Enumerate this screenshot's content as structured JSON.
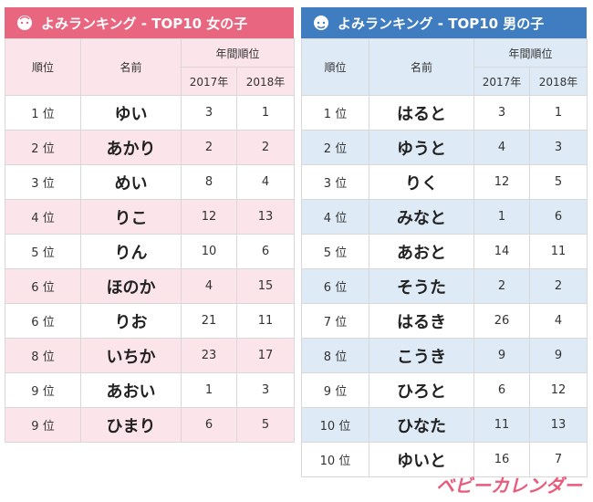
{
  "tables": [
    {
      "title": "よみランキング - TOP10 女の子",
      "headers": {
        "rank": "順位",
        "name": "名前",
        "yearly": "年間順位",
        "year1": "2017年",
        "year2": "2018年"
      },
      "rows": [
        [
          "1 位",
          "ゆい",
          3,
          1
        ],
        [
          "2 位",
          "あかり",
          2,
          2
        ],
        [
          "3 位",
          "めい",
          8,
          4
        ],
        [
          "4 位",
          "りこ",
          12,
          13
        ],
        [
          "5 位",
          "りん",
          10,
          6
        ],
        [
          "6 位",
          "ほのか",
          4,
          15
        ],
        [
          "6 位",
          "りお",
          21,
          11
        ],
        [
          "8 位",
          "いちか",
          23,
          17
        ],
        [
          "9 位",
          "あおい",
          1,
          3
        ],
        [
          "9 位",
          "ひまり",
          6,
          5
        ]
      ]
    },
    {
      "title": "よみランキング - TOP10 男の子",
      "headers": {
        "rank": "順位",
        "name": "名前",
        "yearly": "年間順位",
        "year1": "2017年",
        "year2": "2018年"
      },
      "rows": [
        [
          "1 位",
          "はると",
          3,
          1
        ],
        [
          "2 位",
          "ゆうと",
          4,
          3
        ],
        [
          "3 位",
          "りく",
          12,
          5
        ],
        [
          "4 位",
          "みなと",
          1,
          6
        ],
        [
          "5 位",
          "あおと",
          14,
          11
        ],
        [
          "6 位",
          "そうた",
          2,
          2
        ],
        [
          "7 位",
          "はるき",
          26,
          4
        ],
        [
          "8 位",
          "こうき",
          9,
          9
        ],
        [
          "9 位",
          "ひろと",
          6,
          12
        ],
        [
          "10 位",
          "ひなた",
          11,
          13
        ],
        [
          "10 位",
          "ゆいと",
          16,
          7
        ]
      ]
    }
  ],
  "logo": "ベビーカレンダー"
}
